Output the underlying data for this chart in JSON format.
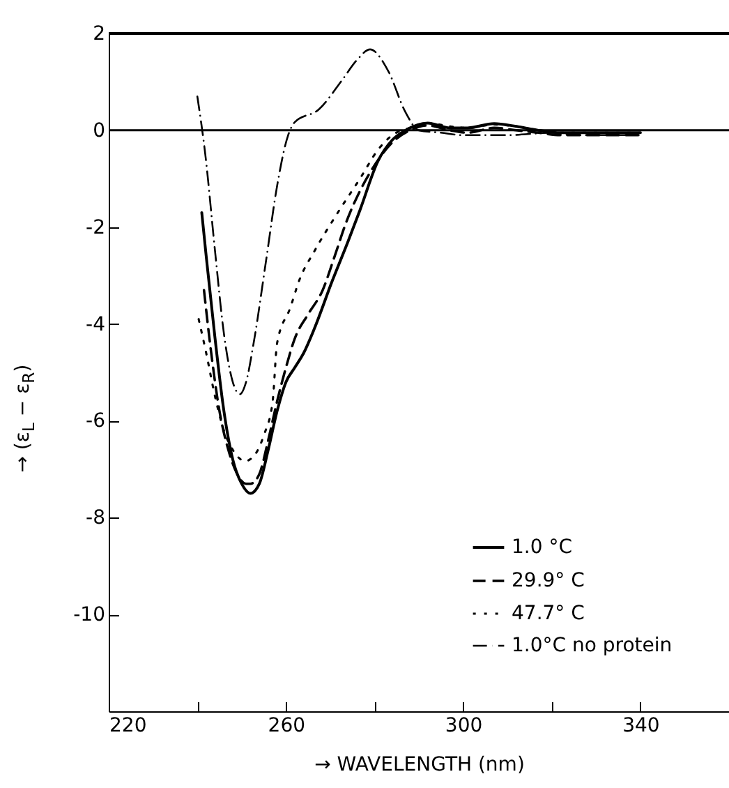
{
  "chart_data": {
    "type": "line",
    "xlabel": "→ WAVELENGTH (nm)",
    "ylabel": "→ (ε$_{L}$ − ε$_{R}$)",
    "xlim": [
      220,
      360
    ],
    "ylim": [
      -12,
      2
    ],
    "xticks": [
      220,
      {
        "value": 240,
        "label": null
      },
      260,
      {
        "value": 280,
        "label": null
      },
      300,
      {
        "value": 320,
        "label": null
      },
      340
    ],
    "yticks": [
      -10,
      -8,
      -6,
      -4,
      -2,
      0,
      2
    ],
    "legend": "bottom right",
    "grid": false,
    "ref_lines": [
      {
        "axis": "y",
        "value": 0,
        "color": "#000000"
      }
    ],
    "series": [
      {
        "name": "1.0 °C",
        "color": "#000000",
        "line_style": "solid",
        "x": [
          241,
          242,
          244,
          246,
          248,
          250,
          252,
          254,
          256,
          258,
          260,
          262,
          264,
          266.4,
          270.5,
          274,
          276.7,
          280.8,
          284,
          287,
          292,
          297,
          301,
          307,
          312,
          317,
          322,
          330,
          340
        ],
        "values": [
          -1.7,
          -2.6,
          -4.3,
          -5.8,
          -6.8,
          -7.3,
          -7.5,
          -7.3,
          -6.6,
          -5.8,
          -5.2,
          -4.9,
          -4.6,
          -4.1,
          -3.1,
          -2.3,
          -1.65,
          -0.63,
          -0.2,
          0,
          0.15,
          0.05,
          0.05,
          0.14,
          0.08,
          0,
          -0.05,
          -0.05,
          -0.05
        ]
      },
      {
        "name": "29.9° C",
        "color": "#000000",
        "line_style": "dashed",
        "x": [
          241.5,
          243,
          245,
          247,
          249,
          251,
          252,
          254,
          256,
          258,
          260,
          262,
          265,
          268.3,
          271,
          273.6,
          277,
          279,
          284,
          288,
          292,
          297,
          301,
          307,
          312,
          317,
          322,
          330,
          340
        ],
        "values": [
          -3.3,
          -4.5,
          -5.8,
          -6.6,
          -7.1,
          -7.3,
          -7.3,
          -7.1,
          -6.4,
          -5.6,
          -4.9,
          -4.3,
          -3.8,
          -3.3,
          -2.6,
          -1.9,
          -1.2,
          -0.87,
          -0.25,
          0,
          0.1,
          0.0,
          -0.05,
          0.05,
          0.0,
          -0.05,
          -0.1,
          -0.1,
          -0.1
        ]
      },
      {
        "name": "47.7° C",
        "color": "#000000",
        "line_style": "dotted",
        "x": [
          240.3,
          242,
          244,
          246,
          248,
          250.8,
          253,
          255,
          257,
          258,
          261,
          263,
          266.4,
          271.5,
          276.7,
          280.8,
          284,
          288,
          292,
          297,
          301,
          307,
          312,
          317,
          322,
          330,
          340
        ],
        "values": [
          -3.9,
          -4.6,
          -5.5,
          -6.2,
          -6.6,
          -6.83,
          -6.7,
          -6.3,
          -5.6,
          -4.4,
          -3.66,
          -3.1,
          -2.5,
          -1.73,
          -1.0,
          -0.4,
          -0.1,
          0.05,
          0.15,
          0.08,
          0.05,
          0.12,
          0.08,
          0,
          -0.05,
          -0.05,
          -0.05
        ]
      },
      {
        "name": "1.0°C no protein",
        "color": "#000000",
        "line_style": "dashdot",
        "x": [
          240,
          241.8,
          244,
          246,
          248,
          249.6,
          251,
          252.7,
          255.5,
          258,
          260.5,
          262,
          267.4,
          272.7,
          276,
          279,
          283,
          287,
          290,
          295,
          300,
          310,
          320,
          325,
          330,
          340
        ],
        "values": [
          0.7,
          -0.5,
          -2.5,
          -4.2,
          -5.2,
          -5.45,
          -5.2,
          -4.4,
          -2.7,
          -1.15,
          -0.1,
          0.17,
          0.43,
          1.04,
          1.45,
          1.67,
          1.24,
          0.37,
          0,
          -0.05,
          -0.1,
          -0.1,
          -0.05,
          -0.1,
          -0.1,
          -0.1
        ]
      }
    ]
  }
}
